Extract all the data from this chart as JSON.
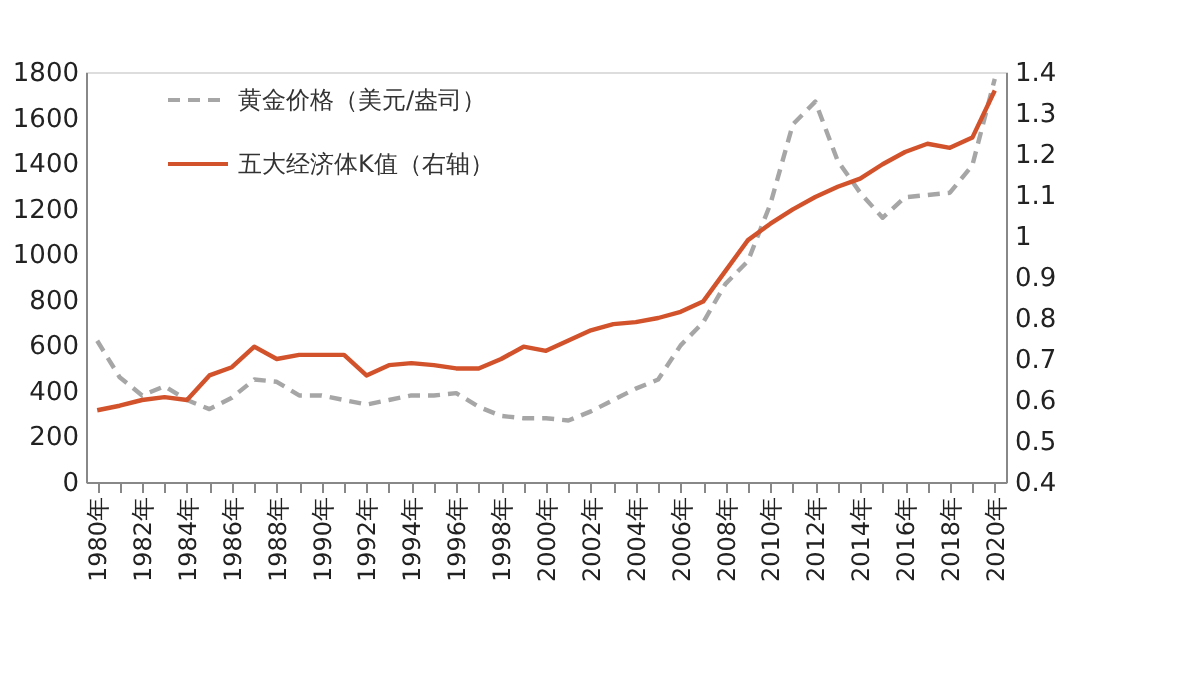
{
  "chart_data": {
    "type": "line",
    "categories": [
      "1980年",
      null,
      "1982年",
      null,
      "1984年",
      null,
      "1986年",
      null,
      "1988年",
      null,
      "1990年",
      null,
      "1992年",
      null,
      "1994年",
      null,
      "1996年",
      null,
      "1998年",
      null,
      "2000年",
      null,
      "2002年",
      null,
      "2004年",
      null,
      "2006年",
      null,
      "2008年",
      null,
      "2010年",
      null,
      "2012年",
      null,
      "2014年",
      null,
      "2016年",
      null,
      "2018年",
      null,
      "2020年"
    ],
    "series": [
      {
        "name": "黄金价格（美元/盎司）",
        "color": "#a6a6a6",
        "line_style": "dashed",
        "values": [
          620,
          460,
          380,
          420,
          360,
          320,
          370,
          450,
          440,
          380,
          380,
          360,
          340,
          360,
          380,
          380,
          390,
          330,
          290,
          280,
          280,
          270,
          310,
          360,
          410,
          450,
          600,
          700,
          870,
          970,
          1220,
          1570,
          1670,
          1410,
          1270,
          1160,
          1250,
          1260,
          1270,
          1390,
          1770
        ]
      },
      {
        "name": "五大经济体K值（右轴）",
        "color": "#d2522b",
        "line_style": "solid",
        "axis": "y2",
        "values": [
          0.575,
          0.586,
          0.6,
          0.607,
          0.6,
          0.66,
          0.68,
          0.73,
          0.7,
          0.71,
          0.71,
          0.71,
          0.66,
          0.685,
          0.69,
          0.685,
          0.677,
          0.677,
          0.7,
          0.73,
          0.72,
          0.745,
          0.77,
          0.785,
          0.79,
          0.8,
          0.815,
          0.84,
          0.915,
          0.99,
          1.03,
          1.065,
          1.095,
          1.12,
          1.14,
          1.175,
          1.205,
          1.225,
          1.215,
          1.24,
          1.355
        ]
      }
    ],
    "ylim": [
      0,
      1800
    ],
    "yticks": [
      0,
      200,
      400,
      600,
      800,
      1000,
      1200,
      1400,
      1600,
      1800
    ],
    "y2lim": [
      0.4,
      1.4
    ],
    "y2ticks": [
      0.4,
      0.5,
      0.6,
      0.7,
      0.8,
      0.9,
      1,
      1.1,
      1.2,
      1.3,
      1.4
    ],
    "legend": "top left"
  }
}
